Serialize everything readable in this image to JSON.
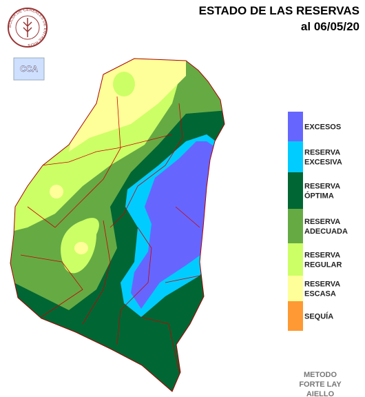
{
  "header": {
    "title": "ESTADO DE LAS RESERVAS",
    "date": "al 06/05/20"
  },
  "logo": {
    "text": "BOLSA DE CEREALES DE ENTRE RIOS",
    "badge": "CCA"
  },
  "legend": [
    {
      "lines": [
        "EXCESOS"
      ],
      "color": "#6666ff"
    },
    {
      "lines": [
        "RESERVA",
        "EXCESIVA"
      ],
      "color": "#00ccff"
    },
    {
      "lines": [
        "RESERVA",
        "ÓPTIMA"
      ],
      "color": "#006633"
    },
    {
      "lines": [
        "RESERVA",
        "ADECUADA"
      ],
      "color": "#66aa44"
    },
    {
      "lines": [
        "RESERVA",
        "REGULAR"
      ],
      "color": "#ccff66"
    },
    {
      "lines": [
        "RESERVA",
        "ESCASA"
      ],
      "color": "#ffff99"
    },
    {
      "lines": [
        "SEQUÍA"
      ],
      "color": "#ff9933"
    }
  ],
  "footer": [
    "METODO",
    "FORTE LAY",
    "AIELLO"
  ]
}
